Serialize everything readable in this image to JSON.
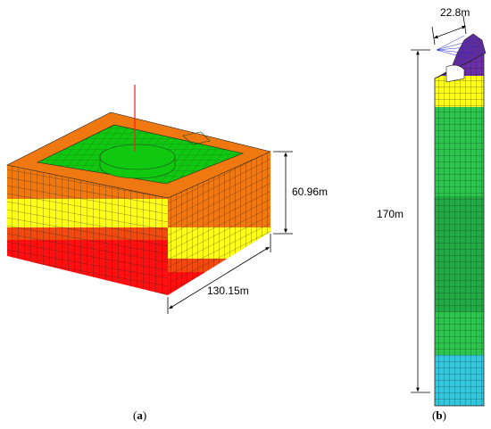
{
  "panel_a": {
    "height_label": "60.96m",
    "width_label": "130.15m",
    "caption_open": "(",
    "caption_letter": "a",
    "caption_close": ")"
  },
  "panel_b": {
    "width_label": "22.8m",
    "height_label": "170m",
    "caption_open": "(",
    "caption_letter": "b",
    "caption_close": ")"
  },
  "colors": {
    "top_green": "#11c811",
    "layer_orange": "#f07810",
    "layer_dark_orange": "#f04a10",
    "layer_yellow": "#ffff1a",
    "layer_red": "#ff1010",
    "column_green": "#2fc44f",
    "column_green_mid": "#25a946",
    "column_cyan": "#36c6dc",
    "column_purple": "#6b2fa8",
    "mesh_line": "#1a1a1a",
    "pointer_red": "#ff1a1a"
  }
}
